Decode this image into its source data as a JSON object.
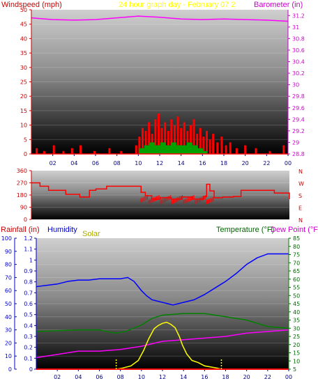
{
  "chart_data": [
    {
      "id": "wind_baro",
      "type": "line",
      "title": "24 hour graph day - February 07 2",
      "left_axis_label": "Windspeed (mph)",
      "right_axis_label": "Barometer (in)",
      "x_ticks": [
        "02",
        "04",
        "06",
        "08",
        "10",
        "12",
        "14",
        "16",
        "18",
        "20",
        "22",
        "00"
      ],
      "x_range": [
        0,
        24
      ],
      "y_left_ticks": [
        "0",
        "5",
        "10",
        "15",
        "20",
        "25",
        "30",
        "35",
        "40",
        "45",
        "50"
      ],
      "y_left_range": [
        0,
        50
      ],
      "y_right_ticks": [
        "28.8",
        "29",
        "29.2",
        "29.4",
        "29.6",
        "29.8",
        "30",
        "30.2",
        "30.4",
        "30.6",
        "30.8",
        "31",
        "31.2"
      ],
      "y_right_range": [
        28.8,
        31.3
      ],
      "series": [
        {
          "name": "Windspeed (mph)",
          "axis": "left",
          "style": "spikes",
          "x": [
            0.5,
            1.2,
            2.1,
            3.0,
            3.8,
            4.6,
            5.9,
            7.3,
            8.4,
            9.8,
            10.1,
            10.4,
            10.7,
            11.0,
            11.3,
            11.6,
            11.9,
            12.2,
            12.5,
            12.8,
            13.1,
            13.4,
            13.7,
            14.0,
            14.3,
            14.6,
            14.9,
            15.2,
            15.5,
            15.8,
            16.1,
            16.4,
            16.7,
            17.0,
            17.4,
            17.8,
            18.2,
            18.6,
            19.2,
            20.0,
            21.0,
            22.3,
            23.6
          ],
          "values": [
            2,
            1,
            3,
            1,
            2,
            3,
            1,
            2,
            1,
            3,
            6,
            9,
            8,
            11,
            7,
            12,
            14,
            9,
            11,
            8,
            12,
            10,
            13,
            9,
            11,
            8,
            10,
            12,
            7,
            9,
            6,
            8,
            5,
            7,
            4,
            6,
            3,
            4,
            2,
            3,
            2,
            1,
            3
          ]
        },
        {
          "name": "Gust",
          "axis": "left",
          "style": "spikes",
          "x": [
            10.3,
            10.8,
            11.3,
            11.8,
            12.3,
            12.8,
            13.3,
            13.8,
            14.3,
            14.8,
            15.3,
            15.8,
            16.2
          ],
          "values": [
            2,
            3,
            4,
            3,
            4,
            3,
            4,
            3,
            3,
            4,
            3,
            2,
            1
          ]
        },
        {
          "name": "Barometer (in)",
          "axis": "right",
          "style": "line",
          "x": [
            0,
            2,
            4,
            6,
            8,
            10,
            12,
            14,
            16,
            18,
            20,
            22,
            24
          ],
          "values": [
            31.16,
            31.13,
            31.12,
            31.13,
            31.16,
            31.19,
            31.17,
            31.14,
            31.13,
            31.14,
            31.13,
            31.12,
            31.1
          ]
        }
      ]
    },
    {
      "id": "wind_dir",
      "type": "line",
      "right_labels": [
        "N",
        "W",
        "S",
        "E",
        "N"
      ],
      "y_ticks": [
        "0",
        "90",
        "180",
        "270",
        "360"
      ],
      "y_range": [
        0,
        360
      ],
      "x_range": [
        0,
        24
      ],
      "series": [
        {
          "name": "Wind direction",
          "style": "step",
          "x": [
            0,
            0.8,
            1.6,
            3.2,
            4.5,
            5.4,
            6.0,
            7.0,
            8.0,
            9.0,
            9.9,
            10.2,
            10.6,
            11.2,
            12.0,
            13.0,
            14.0,
            15.0,
            16.0,
            16.3,
            16.6,
            17.0,
            17.8,
            18.8,
            19.5,
            21.5,
            22.6,
            24
          ],
          "values": [
            270,
            245,
            215,
            185,
            165,
            215,
            225,
            245,
            245,
            245,
            245,
            200,
            175,
            150,
            160,
            150,
            165,
            150,
            170,
            260,
            210,
            160,
            165,
            170,
            215,
            215,
            195,
            150
          ]
        }
      ]
    },
    {
      "id": "rain_temp",
      "type": "line",
      "labels": {
        "rainfall": "Rainfall (in)",
        "humidity": "Humidity",
        "solar": "Solar",
        "temperature": "Temperature (°F)",
        "dewpoint": "Dew Point (°F)"
      },
      "x_ticks": [
        "02",
        "04",
        "06",
        "08",
        "10",
        "12",
        "14",
        "16",
        "18",
        "20",
        "22",
        "00"
      ],
      "x_range": [
        0,
        24
      ],
      "y_hum_ticks": [
        "0",
        "10",
        "20",
        "30",
        "40",
        "50",
        "60",
        "70",
        "80",
        "90",
        "100"
      ],
      "y_hum_range": [
        0,
        100
      ],
      "y_rain_ticks": [
        "0",
        "0.1",
        "0.2",
        "0.3",
        "0.4",
        "0.5",
        "0.6",
        "0.7",
        "0.8",
        "0.9",
        "1",
        "1.1",
        "1.2"
      ],
      "y_rain_range": [
        0,
        1.2
      ],
      "y_temp_ticks": [
        "5",
        "10",
        "15",
        "20",
        "25",
        "30",
        "35",
        "40",
        "45",
        "50",
        "55",
        "60",
        "65",
        "70",
        "75",
        "80",
        "85"
      ],
      "y_temp_range": [
        5,
        85
      ],
      "series": [
        {
          "name": "Humidity",
          "axis": "hum",
          "x": [
            0,
            1,
            2,
            3,
            4,
            5,
            6,
            7,
            8,
            8.7,
            9.3,
            10,
            10.5,
            11,
            12,
            13,
            14,
            15,
            16,
            17,
            18,
            19,
            20,
            21,
            22,
            23,
            24
          ],
          "values": [
            63,
            64,
            65,
            67,
            68,
            68,
            69,
            69,
            69,
            70,
            67,
            60,
            56,
            53,
            51,
            49,
            51,
            53,
            57,
            62,
            67,
            73,
            80,
            85,
            88,
            88,
            88
          ]
        },
        {
          "name": "Temperature (°F)",
          "axis": "temp",
          "x": [
            0,
            2,
            4,
            6,
            7.5,
            8.5,
            10,
            11,
            12,
            14,
            16,
            18,
            20,
            22,
            24
          ],
          "values": [
            28,
            28.5,
            29,
            29,
            27,
            28,
            32,
            36,
            38,
            39,
            39,
            37,
            35,
            31,
            30
          ]
        },
        {
          "name": "Dew Point (°F)",
          "axis": "temp",
          "x": [
            0,
            2,
            4,
            6,
            8,
            10,
            12,
            14,
            16,
            18,
            20,
            22,
            24
          ],
          "values": [
            12,
            14,
            16,
            16,
            17,
            19,
            22,
            23,
            24,
            25,
            27,
            28,
            29
          ]
        },
        {
          "name": "Solar",
          "axis": "rain",
          "x": [
            7.6,
            8.2,
            9,
            9.7,
            10.2,
            10.7,
            11.2,
            11.6,
            12,
            12.4,
            12.8,
            13.2,
            13.6,
            13.9,
            14.3,
            14.8,
            15.4,
            16,
            16.6,
            17.2,
            17.6
          ],
          "values": [
            0,
            0.01,
            0.03,
            0.08,
            0.17,
            0.28,
            0.37,
            0.4,
            0.42,
            0.43,
            0.41,
            0.38,
            0.3,
            0.22,
            0.14,
            0.08,
            0.06,
            0.03,
            0.02,
            0.01,
            0
          ]
        },
        {
          "name": "Rainfall (in)",
          "axis": "rain",
          "x": [
            0,
            24
          ],
          "values": [
            0,
            0
          ]
        }
      ]
    }
  ],
  "colors": {
    "wind": "#ff0000",
    "gust": "#00a000",
    "barometer": "#ff00ff",
    "title": "#ffff00",
    "humidity": "#0000ff",
    "temperature": "#008000",
    "dewpoint": "#ff00ff",
    "solar": "#ffff00",
    "rainfall": "#ff0000",
    "left_label": "#cc0000",
    "right_label": "#cc00cc",
    "hum_label": "#0000cc",
    "solar_label": "#aaaa00",
    "temp_label": "#006600"
  }
}
